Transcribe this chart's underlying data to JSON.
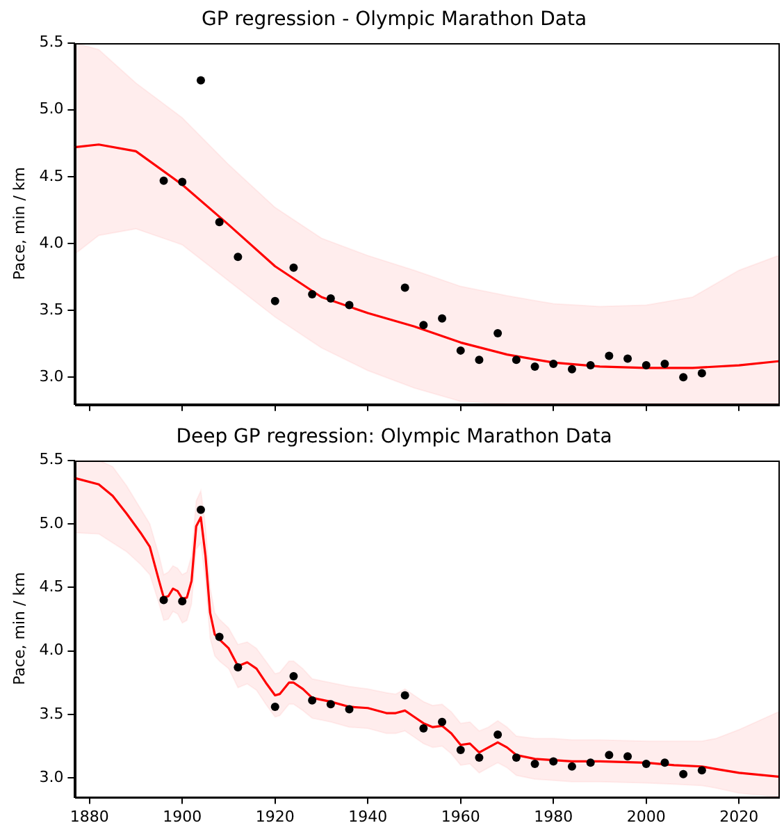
{
  "chart_data": [
    {
      "type": "scatter",
      "title": "GP regression - Olympic Marathon Data",
      "ylabel": "Pace, min / km",
      "xlim": [
        1876.8,
        2028.5
      ],
      "xticks": [
        1880,
        1900,
        1920,
        1940,
        1960,
        1980,
        2000,
        2020
      ],
      "ylim": [
        2.8,
        5.5
      ],
      "yticks": [
        {
          "value": 3,
          "label": "3.0"
        },
        3.5,
        {
          "value": 4,
          "label": "4.0"
        },
        4.5,
        {
          "value": 5,
          "label": "5.0"
        },
        5.5
      ],
      "tick_labels": "y",
      "grid": false,
      "legend": false,
      "series": [
        {
          "color": "#000000",
          "marker": "circle",
          "x": [
            1896,
            1900,
            1904,
            1908,
            1912,
            1920,
            1924,
            1928,
            1932,
            1936,
            1948,
            1952,
            1956,
            1960,
            1964,
            1968,
            1972,
            1976,
            1980,
            1984,
            1988,
            1992,
            1996,
            2000,
            2004,
            2008,
            2012
          ],
          "values": [
            4.47,
            4.46,
            5.22,
            4.16,
            3.9,
            3.57,
            3.82,
            3.62,
            3.59,
            3.54,
            3.67,
            3.39,
            3.44,
            3.2,
            3.13,
            3.33,
            3.13,
            3.08,
            3.1,
            3.06,
            3.09,
            3.16,
            3.14,
            3.09,
            3.1,
            3.0,
            3.03
          ]
        },
        {
          "type": "line",
          "color": "#ff0000",
          "marker": "none",
          "line_style": "solid",
          "x": [
            1876.8,
            1882,
            1890,
            1900,
            1910,
            1920,
            1930,
            1940,
            1950,
            1960,
            1970,
            1980,
            1990,
            2000,
            2010,
            2020,
            2028.5
          ],
          "values": [
            4.72,
            4.74,
            4.69,
            4.44,
            4.14,
            3.83,
            3.6,
            3.48,
            3.38,
            3.26,
            3.17,
            3.11,
            3.08,
            3.07,
            3.07,
            3.09,
            3.12
          ],
          "upper": [
            5.5,
            5.45,
            5.2,
            4.94,
            4.59,
            4.27,
            4.04,
            3.91,
            3.8,
            3.68,
            3.61,
            3.55,
            3.53,
            3.54,
            3.6,
            3.8,
            3.91
          ],
          "lower": [
            3.92,
            4.06,
            4.11,
            3.99,
            3.72,
            3.45,
            3.22,
            3.05,
            2.92,
            2.82,
            2.8,
            2.8,
            2.8,
            2.8,
            2.8,
            2.8,
            2.8
          ]
        }
      ]
    },
    {
      "type": "scatter",
      "title": "Deep GP regression: Olympic Marathon Data",
      "ylabel": "Pace, min / km",
      "xlim": [
        1876.8,
        2028.5
      ],
      "xticks": [
        1880,
        1900,
        1920,
        1940,
        1960,
        1980,
        2000,
        2020
      ],
      "ylim": [
        2.85,
        5.5
      ],
      "yticks": [
        {
          "value": 3,
          "label": "3.0"
        },
        3.5,
        {
          "value": 4,
          "label": "4.0"
        },
        4.5,
        {
          "value": 5,
          "label": "5.0"
        },
        5.5
      ],
      "grid": false,
      "legend": false,
      "series": [
        {
          "color": "#000000",
          "marker": "circle",
          "x": [
            1896,
            1900,
            1904,
            1908,
            1912,
            1920,
            1924,
            1928,
            1932,
            1936,
            1948,
            1952,
            1956,
            1960,
            1964,
            1968,
            1972,
            1976,
            1980,
            1984,
            1988,
            1992,
            1996,
            2000,
            2004,
            2008,
            2012
          ],
          "values": [
            4.4,
            4.39,
            5.11,
            4.11,
            3.87,
            3.56,
            3.8,
            3.61,
            3.58,
            3.54,
            3.65,
            3.39,
            3.44,
            3.22,
            3.16,
            3.34,
            3.16,
            3.11,
            3.13,
            3.09,
            3.12,
            3.18,
            3.17,
            3.11,
            3.12,
            3.03,
            3.06
          ]
        },
        {
          "type": "line",
          "color": "#ff0000",
          "marker": "none",
          "line_style": "solid",
          "x": [
            1876.8,
            1882,
            1885,
            1888,
            1891,
            1893,
            1895,
            1896,
            1897,
            1898,
            1899,
            1900,
            1901,
            1902,
            1903,
            1904,
            1905,
            1906,
            1907,
            1908,
            1910,
            1912,
            1914,
            1916,
            1918,
            1920,
            1921,
            1923,
            1924,
            1926,
            1928,
            1932,
            1936,
            1940,
            1944,
            1946,
            1948,
            1950,
            1952,
            1954,
            1956,
            1958,
            1960,
            1962,
            1964,
            1966,
            1968,
            1970,
            1972,
            1976,
            1980,
            1984,
            1990,
            2000,
            2006,
            2012,
            2015,
            2020,
            2028.5
          ],
          "values": [
            5.36,
            5.31,
            5.22,
            5.08,
            4.93,
            4.82,
            4.55,
            4.42,
            4.43,
            4.49,
            4.47,
            4.41,
            4.42,
            4.55,
            4.98,
            5.05,
            4.75,
            4.3,
            4.13,
            4.09,
            4.02,
            3.88,
            3.91,
            3.86,
            3.75,
            3.65,
            3.66,
            3.75,
            3.75,
            3.7,
            3.63,
            3.6,
            3.56,
            3.55,
            3.51,
            3.51,
            3.53,
            3.48,
            3.43,
            3.4,
            3.41,
            3.35,
            3.26,
            3.27,
            3.2,
            3.24,
            3.28,
            3.24,
            3.18,
            3.15,
            3.14,
            3.13,
            3.13,
            3.12,
            3.1,
            3.09,
            3.07,
            3.04,
            3.01
          ],
          "upper": [
            5.5,
            5.5,
            5.45,
            5.3,
            5.12,
            5.0,
            4.75,
            4.6,
            4.62,
            4.67,
            4.65,
            4.6,
            4.62,
            4.75,
            5.18,
            5.26,
            4.98,
            4.5,
            4.3,
            4.25,
            4.18,
            4.05,
            4.07,
            4.02,
            3.92,
            3.82,
            3.83,
            3.92,
            3.92,
            3.86,
            3.78,
            3.75,
            3.72,
            3.7,
            3.67,
            3.66,
            3.7,
            3.65,
            3.6,
            3.57,
            3.58,
            3.52,
            3.43,
            3.44,
            3.37,
            3.4,
            3.45,
            3.4,
            3.33,
            3.31,
            3.31,
            3.3,
            3.3,
            3.29,
            3.29,
            3.29,
            3.31,
            3.38,
            3.52
          ],
          "lower": [
            4.93,
            4.92,
            4.85,
            4.78,
            4.68,
            4.6,
            4.37,
            4.24,
            4.25,
            4.31,
            4.29,
            4.22,
            4.24,
            4.37,
            4.8,
            4.85,
            4.55,
            4.1,
            3.96,
            3.92,
            3.86,
            3.71,
            3.74,
            3.69,
            3.58,
            3.48,
            3.49,
            3.58,
            3.58,
            3.53,
            3.47,
            3.44,
            3.4,
            3.39,
            3.35,
            3.35,
            3.37,
            3.32,
            3.27,
            3.24,
            3.25,
            3.19,
            3.1,
            3.11,
            3.04,
            3.08,
            3.12,
            3.08,
            3.02,
            2.99,
            2.98,
            2.97,
            2.97,
            2.96,
            2.95,
            2.94,
            2.92,
            2.88,
            2.85
          ]
        }
      ]
    }
  ]
}
